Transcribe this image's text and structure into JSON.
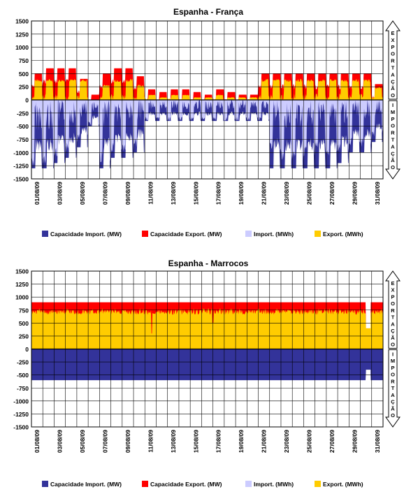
{
  "colors": {
    "import_capacity": "#33339a",
    "export_capacity": "#ff0000",
    "import_energy": "#ccccff",
    "export_energy": "#ffcc00",
    "grid": "#000000",
    "background": "#ffffff"
  },
  "side_labels": {
    "export": "EXPORTAÇÃO",
    "import": "IMPORTAÇÃO"
  },
  "chart_data": [
    {
      "type": "area",
      "title": "Espanha - França",
      "xlabel": "",
      "ylabel": "",
      "ylim": [
        -1500,
        1500
      ],
      "y_ticks": [
        1500,
        1250,
        1000,
        750,
        500,
        250,
        0,
        -250,
        -500,
        -750,
        -1000,
        -1250,
        -1500
      ],
      "x_range_days": [
        1,
        32
      ],
      "x_tick_labels": [
        "01/08/09",
        "03/08/09",
        "05/08/09",
        "07/08/09",
        "09/08/09",
        "11/08/09",
        "13/08/09",
        "15/08/09",
        "17/08/09",
        "19/08/09",
        "21/08/09",
        "23/08/09",
        "25/08/09",
        "27/08/09",
        "29/08/09",
        "31/08/09"
      ],
      "grid": true,
      "legend": [
        "Capacidade Import. (MW)",
        "Capacidade Export. (MW)",
        "Import. (MWh)",
        "Export. (MWh)"
      ],
      "legend_position": "bottom",
      "series": [
        {
          "name": "Capacidade Export. (MW)",
          "day_values": [
            500,
            600,
            600,
            600,
            400,
            100,
            500,
            600,
            600,
            450,
            200,
            150,
            200,
            200,
            150,
            100,
            200,
            150,
            100,
            100,
            500,
            500,
            500,
            500,
            500,
            500,
            500,
            500,
            500,
            500,
            300
          ],
          "note": "approximate daily envelope"
        },
        {
          "name": "Export. (MWh)",
          "day_values": [
            400,
            400,
            400,
            400,
            400,
            0,
            300,
            400,
            400,
            300,
            100,
            50,
            100,
            100,
            50,
            50,
            100,
            50,
            50,
            50,
            400,
            400,
            400,
            400,
            400,
            400,
            400,
            400,
            400,
            400,
            250
          ]
        },
        {
          "name": "Capacidade Import. (MW)",
          "day_values": [
            -1300,
            -1300,
            -1200,
            -1100,
            -900,
            -500,
            -1300,
            -1100,
            -1100,
            -1000,
            -400,
            -400,
            -400,
            -400,
            -400,
            -400,
            -400,
            -400,
            -400,
            -400,
            -400,
            -1300,
            -1300,
            -1300,
            -1300,
            -1300,
            -1300,
            -1200,
            -1000,
            -1000,
            -800
          ]
        },
        {
          "name": "Import. (MWh)",
          "day_values": [
            -1300,
            -1300,
            -1100,
            -1000,
            -800,
            -500,
            -1200,
            -1000,
            -1000,
            -900,
            -400,
            -400,
            -400,
            -400,
            -400,
            -400,
            -400,
            -400,
            -400,
            -400,
            -400,
            -1000,
            -1200,
            -1200,
            -1100,
            -1000,
            -1100,
            -1000,
            -900,
            -900,
            -700
          ]
        }
      ]
    },
    {
      "type": "area",
      "title": "Espanha - Marrocos",
      "xlabel": "",
      "ylabel": "",
      "ylim": [
        -1500,
        1500
      ],
      "y_ticks": [
        1500,
        1250,
        1000,
        750,
        500,
        250,
        0,
        -250,
        -500,
        -750,
        -1000,
        -1250,
        -1500
      ],
      "x_range_days": [
        1,
        32
      ],
      "x_tick_labels": [
        "01/08/09",
        "03/08/09",
        "05/08/09",
        "07/08/09",
        "09/08/09",
        "11/08/09",
        "13/08/09",
        "15/08/09",
        "17/08/09",
        "19/08/09",
        "21/08/09",
        "23/08/09",
        "25/08/09",
        "27/08/09",
        "29/08/09",
        "31/08/09"
      ],
      "grid": true,
      "legend": [
        "Capacidade Import. (MW)",
        "Capacidade Export. (MW)",
        "Import. (MWh)",
        "Export. (MWh)"
      ],
      "legend_position": "bottom",
      "series": [
        {
          "name": "Capacidade Export. (MW)",
          "constant": 900,
          "dip": {
            "day_start": 30.5,
            "day_end": 30.9,
            "value": 400
          }
        },
        {
          "name": "Export. (MWh)",
          "base": 780,
          "min_dips": [
            {
              "day": 11.6,
              "value": 300
            },
            {
              "day": 17.0,
              "value": 500
            }
          ]
        },
        {
          "name": "Capacidade Import. (MW)",
          "constant": -600,
          "dip": {
            "day_start": 30.5,
            "day_end": 30.9,
            "value": -400
          }
        },
        {
          "name": "Import. (MWh)",
          "constant": 0
        }
      ]
    }
  ]
}
